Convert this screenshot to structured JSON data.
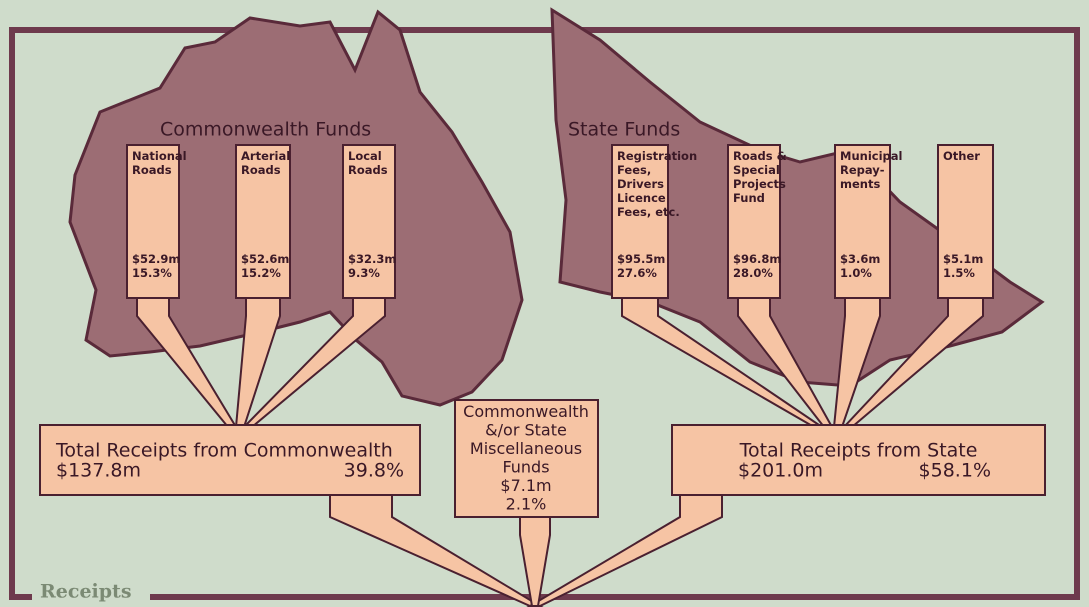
{
  "commonwealth": {
    "title": "Commonwealth Funds",
    "items": [
      {
        "label": [
          "National",
          "Roads"
        ],
        "amount": "$52.9m",
        "percent": "15.3%"
      },
      {
        "label": [
          "Arterial",
          "Roads"
        ],
        "amount": "$52.6m",
        "percent": "15.2%"
      },
      {
        "label": [
          "Local",
          "Roads"
        ],
        "amount": "$32.3m",
        "percent": "9.3%"
      }
    ],
    "total": {
      "label": "Total Receipts from Commonwealth",
      "amount": "$137.8m",
      "percent": "39.8%"
    }
  },
  "state": {
    "title": "State Funds",
    "items": [
      {
        "label": [
          "Registration",
          "Fees,",
          "Drivers",
          "Licence",
          "Fees, etc."
        ],
        "amount": "$95.5m",
        "percent": "27.6%"
      },
      {
        "label": [
          "Roads &",
          "Special",
          "Projects",
          "Fund"
        ],
        "amount": "$96.8m",
        "percent": "28.0%"
      },
      {
        "label": [
          "Municipal",
          "Repay-",
          "ments"
        ],
        "amount": "$3.6m",
        "percent": "1.0%"
      },
      {
        "label": [
          "Other"
        ],
        "amount": "$5.1m",
        "percent": "1.5%"
      }
    ],
    "total": {
      "label": "Total Receipts from State",
      "amount": "$201.0m",
      "percent": "$58.1%"
    }
  },
  "miscellaneous": {
    "label": [
      "Commonwealth",
      "&/or State",
      "Miscellaneous",
      "Funds"
    ],
    "amount": "$7.1m",
    "percent": "2.1%"
  },
  "footer": {
    "title": "Receipts"
  }
}
